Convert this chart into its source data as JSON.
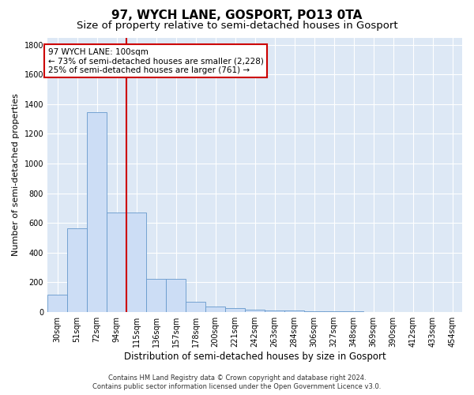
{
  "title": "97, WYCH LANE, GOSPORT, PO13 0TA",
  "subtitle": "Size of property relative to semi-detached houses in Gosport",
  "xlabel": "Distribution of semi-detached houses by size in Gosport",
  "ylabel": "Number of semi-detached properties",
  "footer_line1": "Contains HM Land Registry data © Crown copyright and database right 2024.",
  "footer_line2": "Contains public sector information licensed under the Open Government Licence v3.0.",
  "bar_labels": [
    "30sqm",
    "51sqm",
    "72sqm",
    "94sqm",
    "115sqm",
    "136sqm",
    "157sqm",
    "178sqm",
    "200sqm",
    "221sqm",
    "242sqm",
    "263sqm",
    "284sqm",
    "306sqm",
    "327sqm",
    "348sqm",
    "369sqm",
    "390sqm",
    "412sqm",
    "433sqm",
    "454sqm"
  ],
  "bar_values": [
    115,
    565,
    1345,
    670,
    670,
    220,
    220,
    70,
    35,
    25,
    15,
    10,
    8,
    5,
    3,
    2,
    1,
    1,
    0,
    0,
    0
  ],
  "bar_color": "#ccddf5",
  "bar_edge_color": "#6699cc",
  "vline_x_index": 3,
  "vline_color": "#cc0000",
  "annotation_text": "97 WYCH LANE: 100sqm\n← 73% of semi-detached houses are smaller (2,228)\n25% of semi-detached houses are larger (761) →",
  "annotation_box_facecolor": "#ffffff",
  "annotation_box_edgecolor": "#cc0000",
  "ylim": [
    0,
    1850
  ],
  "yticks": [
    0,
    200,
    400,
    600,
    800,
    1000,
    1200,
    1400,
    1600,
    1800
  ],
  "bg_color": "#dde8f5",
  "grid_color": "#ffffff",
  "title_fontsize": 11,
  "subtitle_fontsize": 9.5,
  "tick_fontsize": 7,
  "ylabel_fontsize": 8,
  "xlabel_fontsize": 8.5,
  "annotation_fontsize": 7.5,
  "footer_fontsize": 6
}
